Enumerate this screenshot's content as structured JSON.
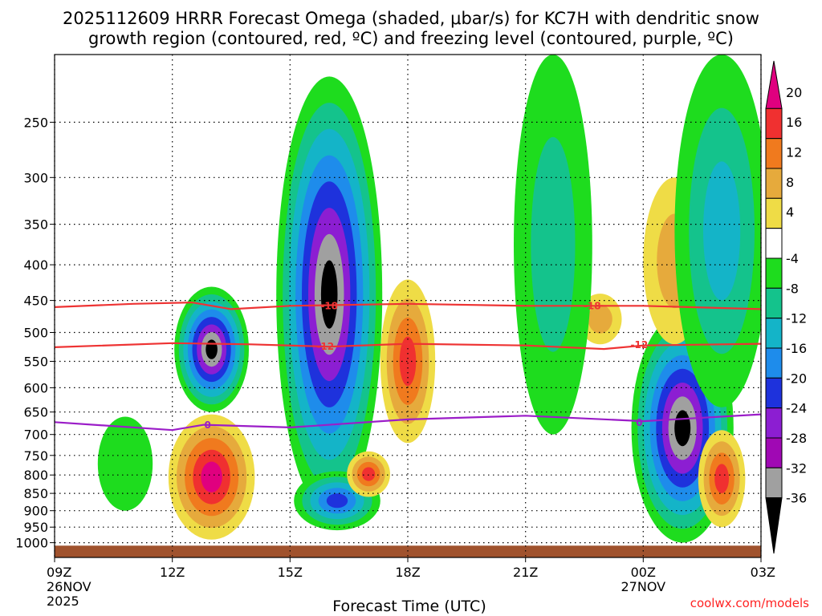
{
  "chart_data": {
    "type": "heatmap",
    "title_line1": "2025112609 HRRR Forecast Omega (shaded, μbar/s) for KC7H with dendritic snow",
    "title_line2": "growth region (contoured, red, ºC) and freezing level (contoured, purple, ºC)",
    "xlabel": "Forecast Time (UTC)",
    "ylabel": "",
    "credit": "coolwx.com/models",
    "x_range_hours": [
      9,
      27
    ],
    "x_ticks": [
      {
        "hour": 9,
        "label": "09Z",
        "sub1": "26NOV",
        "sub2": "2025"
      },
      {
        "hour": 12,
        "label": "12Z",
        "sub1": "",
        "sub2": ""
      },
      {
        "hour": 15,
        "label": "15Z",
        "sub1": "",
        "sub2": ""
      },
      {
        "hour": 18,
        "label": "18Z",
        "sub1": "",
        "sub2": ""
      },
      {
        "hour": 21,
        "label": "21Z",
        "sub1": "",
        "sub2": ""
      },
      {
        "hour": 24,
        "label": "00Z",
        "sub1": "27NOV",
        "sub2": ""
      },
      {
        "hour": 27,
        "label": "03Z",
        "sub1": "",
        "sub2": ""
      }
    ],
    "y_axis": {
      "units": "hPa",
      "scale": "log",
      "range": [
        1050,
        200
      ],
      "inverted": true
    },
    "y_ticks": [
      250,
      300,
      350,
      400,
      450,
      500,
      550,
      600,
      650,
      700,
      750,
      800,
      850,
      900,
      950,
      1000
    ],
    "colorbar": {
      "labels": [
        "20",
        "16",
        "12",
        "8",
        "4",
        "-4",
        "-8",
        "-12",
        "-16",
        "-20",
        "-24",
        "-28",
        "-32",
        "-36"
      ],
      "bins": [
        {
          "color": "#e0007f"
        },
        {
          "color": "#f03030"
        },
        {
          "color": "#f07a1e"
        },
        {
          "color": "#e6aa3c"
        },
        {
          "color": "#efdc46"
        },
        {
          "color": "#ffffff"
        },
        {
          "color": "#1edc1e"
        },
        {
          "color": "#14c38c"
        },
        {
          "color": "#14b4c8"
        },
        {
          "color": "#1e8ceb"
        },
        {
          "color": "#1e32dc"
        },
        {
          "color": "#8c1ed2"
        },
        {
          "color": "#a008b4"
        },
        {
          "color": "#a0a0a0"
        },
        {
          "color": "#000000"
        }
      ]
    },
    "omega_features": [
      {
        "hour": 16.0,
        "p_top": 215,
        "p_bot": 905,
        "w": 1.35,
        "values": [
          -8,
          -12,
          -16,
          -20,
          -24,
          -28,
          -32,
          -36
        ]
      },
      {
        "hour": 13.0,
        "p_top": 430,
        "p_bot": 650,
        "w": 0.95,
        "values": [
          -8,
          -12,
          -16,
          -20,
          -24,
          -28,
          -32,
          -36
        ]
      },
      {
        "hour": 13.0,
        "p_top": 655,
        "p_bot": 990,
        "w": 1.1,
        "values": [
          4,
          8,
          12,
          16,
          20
        ]
      },
      {
        "hour": 25.0,
        "p_top": 470,
        "p_bot": 1000,
        "w": 1.3,
        "values": [
          -8,
          -12,
          -16,
          -20,
          -24,
          -28,
          -32,
          -36
        ]
      },
      {
        "hour": 16.2,
        "p_top": 790,
        "p_bot": 960,
        "w": 1.1,
        "values": [
          -8,
          -12,
          -16,
          -20,
          -24
        ]
      },
      {
        "hour": 18.0,
        "p_top": 420,
        "p_bot": 720,
        "w": 0.7,
        "values": [
          4,
          8,
          12,
          16
        ]
      },
      {
        "hour": 17.0,
        "p_top": 740,
        "p_bot": 860,
        "w": 0.55,
        "values": [
          4,
          8,
          12,
          16
        ]
      },
      {
        "hour": 26.0,
        "p_top": 690,
        "p_bot": 950,
        "w": 0.6,
        "values": [
          4,
          8,
          12,
          16
        ]
      },
      {
        "hour": 22.9,
        "p_top": 440,
        "p_bot": 520,
        "w": 0.55,
        "values": [
          4,
          8
        ]
      },
      {
        "hour": 24.8,
        "p_top": 300,
        "p_bot": 520,
        "w": 0.8,
        "values": [
          4,
          8
        ]
      },
      {
        "hour": 21.7,
        "p_top": 200,
        "p_bot": 700,
        "w": 1.0,
        "values": [
          -8,
          -12
        ]
      },
      {
        "hour": 26.0,
        "p_top": 200,
        "p_bot": 640,
        "w": 1.2,
        "values": [
          -8,
          -12,
          -16
        ]
      },
      {
        "hour": 10.8,
        "p_top": 660,
        "p_bot": 900,
        "w": 0.7,
        "values": [
          -8
        ]
      }
    ],
    "contours": [
      {
        "name": "-18",
        "color": "#ee3333",
        "label": "-18",
        "label_hour": 22.7,
        "points": [
          [
            9,
            460
          ],
          [
            11,
            455
          ],
          [
            12.5,
            453
          ],
          [
            13.5,
            463
          ],
          [
            15,
            458
          ],
          [
            18,
            455
          ],
          [
            21,
            458
          ],
          [
            24,
            458
          ],
          [
            27,
            463
          ]
        ]
      },
      {
        "name": "-12",
        "color": "#ee3333",
        "label": "-12",
        "label_hour": 15.9,
        "points": [
          [
            9,
            525
          ],
          [
            12,
            518
          ],
          [
            14,
            520
          ],
          [
            16,
            524
          ],
          [
            18,
            519
          ],
          [
            21,
            522
          ],
          [
            23,
            528
          ],
          [
            24,
            522
          ],
          [
            27,
            519
          ]
        ]
      },
      {
        "name": "0",
        "color": "#9b1dc8",
        "label": "0",
        "label_hour": 12.9,
        "points": [
          [
            9,
            672
          ],
          [
            12,
            690
          ],
          [
            12.8,
            678
          ],
          [
            15,
            684
          ],
          [
            18,
            666
          ],
          [
            21,
            658
          ],
          [
            24,
            670
          ],
          [
            27,
            655
          ]
        ]
      }
    ],
    "extra_labels": [
      {
        "text": "-18",
        "hour": 16.0,
        "p": 458,
        "color": "#ee3333"
      },
      {
        "text": "-12",
        "hour": 23.9,
        "p": 521,
        "color": "#ee3333"
      },
      {
        "text": "0",
        "hour": 23.9,
        "p": 673,
        "color": "#9b1dc8"
      }
    ],
    "ground_fill_p": 1010,
    "ground_color": "#a0522d"
  }
}
